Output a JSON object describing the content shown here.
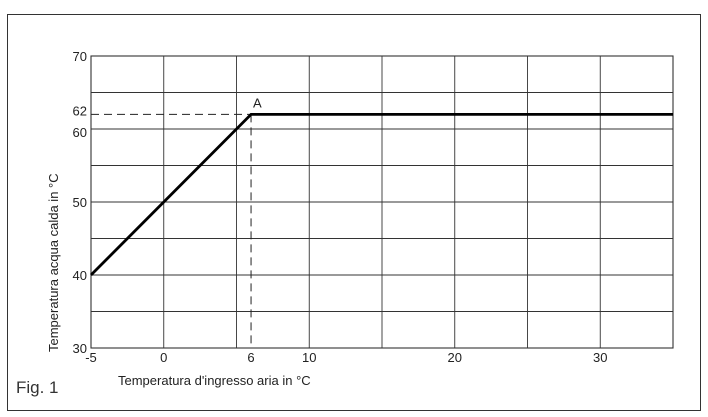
{
  "figure_label": "Fig. 1",
  "chart_data": {
    "type": "line",
    "xlabel": "Temperatura d'ingresso aria in °C",
    "ylabel": "Temperatura acqua calda in °C",
    "xlim": [
      -5,
      35
    ],
    "ylim": [
      30,
      70
    ],
    "x_ticks": [
      -5,
      0,
      6,
      10,
      20,
      30
    ],
    "y_ticks": [
      30,
      40,
      50,
      60,
      62,
      70
    ],
    "grid_x": [
      -5,
      0,
      5,
      10,
      15,
      20,
      25,
      30,
      35
    ],
    "grid_y": [
      30,
      35,
      40,
      45,
      50,
      55,
      60,
      65,
      70
    ],
    "grid": true,
    "series": [
      {
        "x": [
          -5,
          6,
          35
        ],
        "y": [
          40,
          62,
          62
        ]
      }
    ],
    "annotations": [
      {
        "label": "A",
        "x": 6,
        "y": 62,
        "dashed_guides": true
      }
    ]
  }
}
